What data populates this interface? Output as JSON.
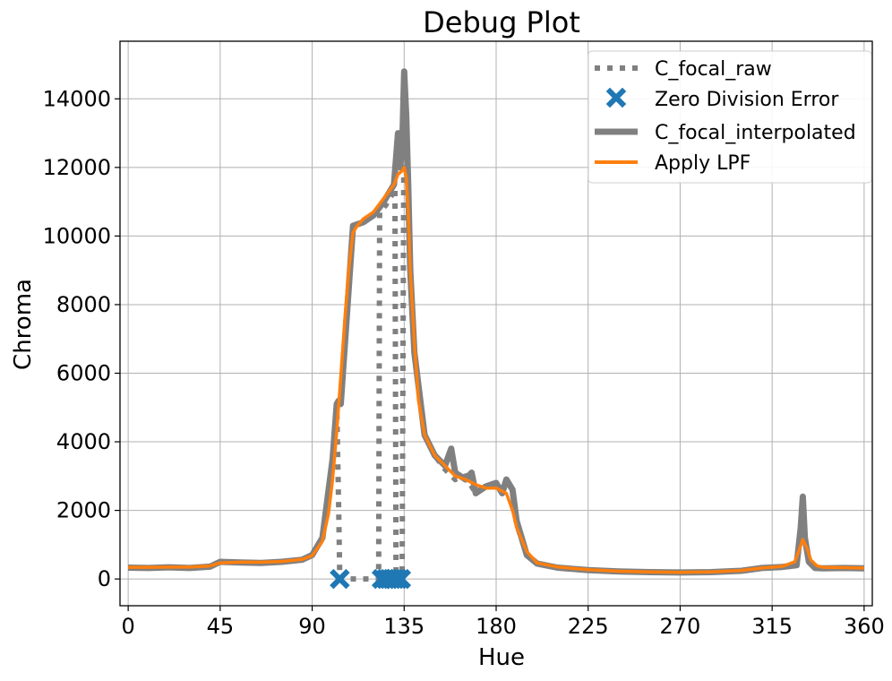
{
  "chart_data": {
    "type": "line",
    "title": "Debug Plot",
    "xlabel": "Hue",
    "ylabel": "Chroma",
    "xlim": [
      -4,
      364
    ],
    "ylim": [
      -780,
      15680
    ],
    "xticks": [
      0,
      45,
      90,
      135,
      180,
      225,
      270,
      315,
      360
    ],
    "yticks": [
      0,
      2000,
      4000,
      6000,
      8000,
      10000,
      12000,
      14000
    ],
    "grid": true,
    "legend_position": "top-right",
    "series": [
      {
        "name": "C_focal_raw",
        "style": "dotted",
        "color": "#808080",
        "x": [
          0,
          10,
          20,
          30,
          40,
          45,
          55,
          65,
          75,
          85,
          90,
          95,
          100,
          102,
          103,
          103.5,
          104,
          110,
          115,
          118,
          120,
          121,
          122,
          122.5,
          123,
          126,
          129,
          130.5,
          131,
          132,
          133,
          134,
          135,
          136,
          137,
          138,
          140,
          145,
          150,
          155,
          160,
          165,
          170,
          175,
          180,
          185,
          188,
          190,
          195,
          200,
          210,
          225,
          240,
          255,
          270,
          285,
          300,
          310,
          320,
          327,
          329,
          330,
          331,
          333,
          336,
          340,
          350,
          360
        ],
        "y": [
          330,
          320,
          340,
          320,
          360,
          500,
          480,
          470,
          500,
          560,
          700,
          1200,
          3500,
          5100,
          2000,
          0,
          0,
          0,
          0,
          0,
          0,
          0,
          0,
          0,
          10700,
          10900,
          11200,
          11400,
          0,
          0,
          0,
          0,
          14800,
          13500,
          11500,
          9000,
          6600,
          4200,
          3600,
          3200,
          2900,
          3000,
          2500,
          2700,
          2800,
          2600,
          2500,
          1600,
          700,
          450,
          330,
          260,
          220,
          200,
          190,
          200,
          240,
          320,
          350,
          400,
          1500,
          2400,
          1200,
          500,
          320,
          310,
          320,
          310
        ]
      },
      {
        "name": "Zero Division Error",
        "style": "markers",
        "color": "#1f77b4",
        "x": [
          103.5,
          124,
          126,
          127.5,
          129,
          130.5,
          132,
          133.5
        ],
        "y": [
          0,
          0,
          0,
          0,
          0,
          0,
          0,
          0
        ]
      },
      {
        "name": "C_focal_interpolated",
        "style": "thick",
        "color": "#808080",
        "x": [
          0,
          10,
          20,
          30,
          40,
          45,
          55,
          65,
          75,
          85,
          90,
          95,
          100,
          102,
          103,
          104,
          110,
          115,
          120,
          125,
          130,
          132,
          133,
          134,
          135,
          136,
          137,
          138,
          140,
          145,
          150,
          155,
          158,
          160,
          165,
          168,
          170,
          175,
          180,
          183,
          185,
          188,
          190,
          195,
          200,
          210,
          225,
          240,
          255,
          270,
          285,
          300,
          310,
          320,
          327,
          329,
          330,
          331,
          333,
          336,
          340,
          350,
          360
        ],
        "y": [
          330,
          320,
          340,
          320,
          360,
          500,
          480,
          470,
          500,
          560,
          700,
          1200,
          3500,
          5100,
          5200,
          5100,
          10300,
          10400,
          10600,
          11000,
          11500,
          13000,
          12000,
          12500,
          14800,
          13500,
          11500,
          9000,
          6600,
          4200,
          3600,
          3300,
          3800,
          3100,
          2900,
          3100,
          2500,
          2700,
          2800,
          2500,
          2900,
          2600,
          1700,
          700,
          450,
          330,
          260,
          220,
          200,
          190,
          200,
          240,
          320,
          350,
          400,
          1500,
          2400,
          1200,
          500,
          320,
          310,
          320,
          310
        ]
      },
      {
        "name": "Apply LPF",
        "style": "solid",
        "color": "#ff7f0e",
        "x": [
          0,
          10,
          20,
          30,
          40,
          45,
          55,
          65,
          75,
          85,
          90,
          95,
          98,
          100,
          102,
          104,
          106,
          108,
          110,
          112,
          115,
          120,
          125,
          130,
          132,
          134,
          135,
          136,
          137,
          138,
          140,
          142,
          145,
          150,
          155,
          160,
          165,
          170,
          175,
          180,
          185,
          188,
          190,
          195,
          200,
          210,
          225,
          240,
          255,
          270,
          285,
          300,
          310,
          320,
          326,
          328,
          330,
          332,
          334,
          337,
          340,
          350,
          360
        ],
        "y": [
          340,
          340,
          345,
          345,
          380,
          470,
          490,
          490,
          510,
          570,
          680,
          1100,
          1900,
          2900,
          4300,
          5900,
          7600,
          9100,
          10100,
          10300,
          10500,
          10700,
          11100,
          11500,
          11800,
          11900,
          12000,
          11700,
          10700,
          9000,
          6900,
          5200,
          4200,
          3600,
          3300,
          3000,
          2900,
          2750,
          2650,
          2650,
          2500,
          2000,
          1500,
          800,
          470,
          350,
          270,
          225,
          205,
          195,
          205,
          250,
          320,
          370,
          500,
          800,
          1150,
          900,
          550,
          380,
          340,
          330,
          320
        ]
      }
    ]
  }
}
